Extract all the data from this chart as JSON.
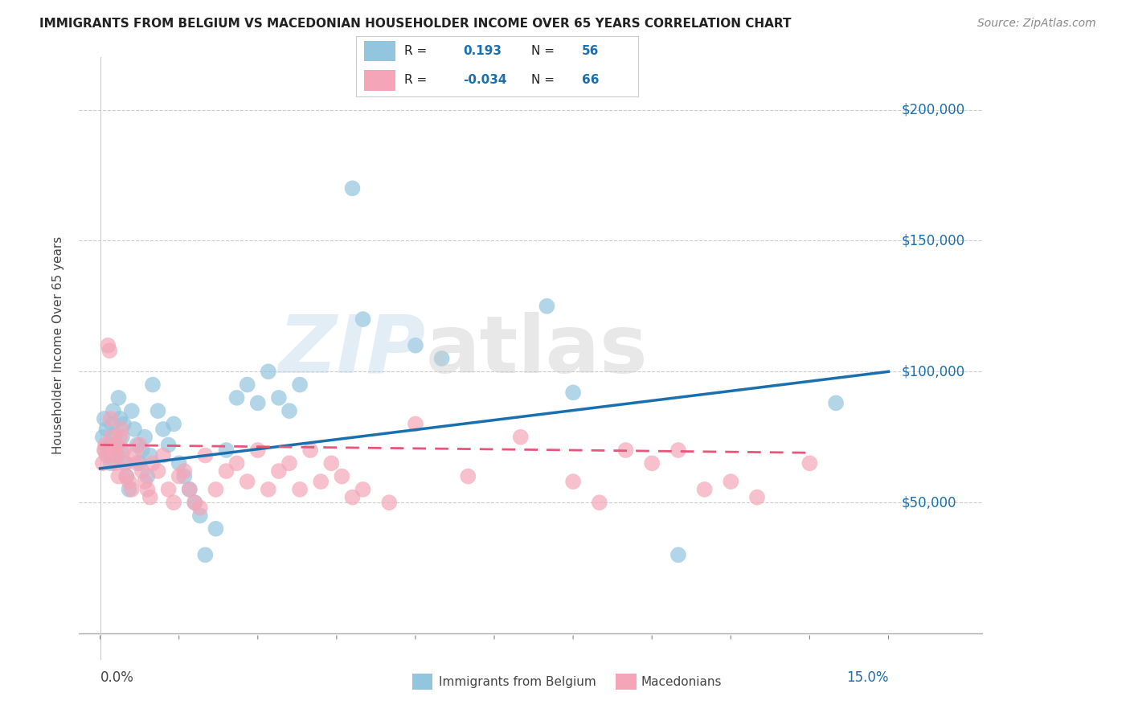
{
  "title": "IMMIGRANTS FROM BELGIUM VS MACEDONIAN HOUSEHOLDER INCOME OVER 65 YEARS CORRELATION CHART",
  "source": "Source: ZipAtlas.com",
  "ylabel": "Householder Income Over 65 years",
  "legend_label1": "Immigrants from Belgium",
  "legend_label2": "Macedonians",
  "r1": 0.193,
  "n1": 56,
  "r2": -0.034,
  "n2": 66,
  "xlim": [
    0.0,
    15.0
  ],
  "ylim": [
    0,
    220000
  ],
  "yticks": [
    50000,
    100000,
    150000,
    200000
  ],
  "xticks": [
    0.0,
    1.5,
    3.0,
    4.5,
    6.0,
    7.5,
    9.0,
    10.5,
    12.0,
    13.5,
    15.0
  ],
  "color_blue": "#92c5de",
  "color_pink": "#f4a6b8",
  "color_blue_line": "#1a6faf",
  "color_pink_line": "#e8547a",
  "blue_trend_x0": 0.0,
  "blue_trend_y0": 63000,
  "blue_trend_x1": 15.0,
  "blue_trend_y1": 100000,
  "pink_trend_x0": 0.0,
  "pink_trend_y0": 72000,
  "pink_trend_x1": 13.5,
  "pink_trend_y1": 69000,
  "blue_x": [
    0.05,
    0.08,
    0.1,
    0.12,
    0.15,
    0.18,
    0.2,
    0.22,
    0.25,
    0.28,
    0.3,
    0.32,
    0.35,
    0.38,
    0.4,
    0.42,
    0.45,
    0.48,
    0.5,
    0.55,
    0.6,
    0.65,
    0.7,
    0.75,
    0.8,
    0.85,
    0.9,
    0.95,
    1.0,
    1.1,
    1.2,
    1.3,
    1.4,
    1.5,
    1.6,
    1.7,
    1.8,
    1.9,
    2.0,
    2.2,
    2.4,
    2.6,
    2.8,
    3.0,
    3.2,
    3.4,
    3.6,
    3.8,
    4.8,
    5.0,
    6.0,
    6.5,
    8.5,
    9.0,
    11.0,
    14.0
  ],
  "blue_y": [
    75000,
    82000,
    70000,
    78000,
    68000,
    72000,
    65000,
    80000,
    85000,
    76000,
    72000,
    68000,
    90000,
    82000,
    70000,
    75000,
    80000,
    65000,
    60000,
    55000,
    85000,
    78000,
    72000,
    65000,
    70000,
    75000,
    60000,
    68000,
    95000,
    85000,
    78000,
    72000,
    80000,
    65000,
    60000,
    55000,
    50000,
    45000,
    30000,
    40000,
    70000,
    90000,
    95000,
    88000,
    100000,
    90000,
    85000,
    95000,
    170000,
    120000,
    110000,
    105000,
    125000,
    92000,
    30000,
    88000
  ],
  "pink_x": [
    0.05,
    0.08,
    0.1,
    0.12,
    0.15,
    0.18,
    0.2,
    0.22,
    0.25,
    0.28,
    0.3,
    0.32,
    0.35,
    0.38,
    0.4,
    0.45,
    0.48,
    0.5,
    0.55,
    0.6,
    0.65,
    0.7,
    0.75,
    0.8,
    0.85,
    0.9,
    0.95,
    1.0,
    1.1,
    1.2,
    1.3,
    1.4,
    1.5,
    1.6,
    1.7,
    1.8,
    1.9,
    2.0,
    2.2,
    2.4,
    2.6,
    2.8,
    3.0,
    3.2,
    3.4,
    3.6,
    3.8,
    4.0,
    4.2,
    4.4,
    4.6,
    4.8,
    5.0,
    5.5,
    6.0,
    7.0,
    8.0,
    9.0,
    9.5,
    10.0,
    10.5,
    11.0,
    11.5,
    12.0,
    12.5,
    13.5
  ],
  "pink_y": [
    65000,
    70000,
    72000,
    68000,
    110000,
    108000,
    82000,
    75000,
    70000,
    65000,
    68000,
    72000,
    60000,
    75000,
    78000,
    70000,
    65000,
    60000,
    58000,
    55000,
    68000,
    65000,
    72000,
    62000,
    58000,
    55000,
    52000,
    65000,
    62000,
    68000,
    55000,
    50000,
    60000,
    62000,
    55000,
    50000,
    48000,
    68000,
    55000,
    62000,
    65000,
    58000,
    70000,
    55000,
    62000,
    65000,
    55000,
    70000,
    58000,
    65000,
    60000,
    52000,
    55000,
    50000,
    80000,
    60000,
    75000,
    58000,
    50000,
    70000,
    65000,
    70000,
    55000,
    58000,
    52000,
    65000
  ]
}
